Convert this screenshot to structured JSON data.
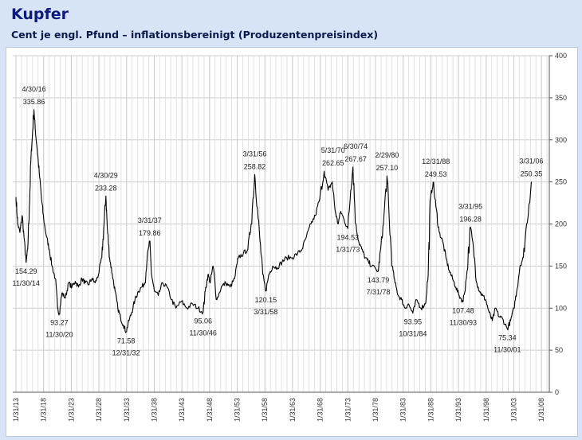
{
  "header": {
    "title": "Kupfer",
    "subtitle": "Cent je engl. Pfund – inflationsbereinigt (Produzentenpreisindex)"
  },
  "colors": {
    "line": "#000000",
    "grid": "#cccccc",
    "background": "#d6e4f5",
    "title": "#0a1a80"
  },
  "chart_data": {
    "type": "line",
    "title": "Kupfer",
    "subtitle": "Cent je engl. Pfund – inflationsbereinigt (Produzentenpreisindex)",
    "xlabel": "",
    "ylabel": "",
    "ylim": [
      0,
      400
    ],
    "xlim": [
      1912.5,
      2009.5
    ],
    "yticks": [
      0,
      50,
      100,
      150,
      200,
      250,
      300,
      350,
      400
    ],
    "xticks": [
      {
        "label": "1/31/13",
        "x": 1913.08
      },
      {
        "label": "1/31/18",
        "x": 1918.08
      },
      {
        "label": "1/31/23",
        "x": 1923.08
      },
      {
        "label": "1/31/28",
        "x": 1928.08
      },
      {
        "label": "1/31/33",
        "x": 1933.08
      },
      {
        "label": "1/31/38",
        "x": 1938.08
      },
      {
        "label": "1/31/43",
        "x": 1943.08
      },
      {
        "label": "1/31/48",
        "x": 1948.08
      },
      {
        "label": "1/31/53",
        "x": 1953.08
      },
      {
        "label": "1/31/58",
        "x": 1958.08
      },
      {
        "label": "1/31/63",
        "x": 1963.08
      },
      {
        "label": "1/31/68",
        "x": 1968.08
      },
      {
        "label": "1/31/73",
        "x": 1973.08
      },
      {
        "label": "1/31/78",
        "x": 1978.08
      },
      {
        "label": "1/31/83",
        "x": 1983.08
      },
      {
        "label": "1/31/88",
        "x": 1988.08
      },
      {
        "label": "1/31/93",
        "x": 1993.08
      },
      {
        "label": "1/31/98",
        "x": 1998.08
      },
      {
        "label": "1/31/03",
        "x": 2003.08
      },
      {
        "label": "1/31/08",
        "x": 2008.08
      }
    ],
    "y_axis_side": "right",
    "grid": true,
    "series": [
      {
        "name": "",
        "x": [
          1913.08,
          1913.4,
          1913.8,
          1914.2,
          1914.6,
          1914.91,
          1915.2,
          1915.5,
          1915.8,
          1916.0,
          1916.33,
          1916.6,
          1916.9,
          1917.3,
          1917.7,
          1918.1,
          1918.6,
          1919.1,
          1919.6,
          1920.2,
          1920.6,
          1920.91,
          1921.4,
          1922.0,
          1922.6,
          1923.2,
          1923.8,
          1924.4,
          1925.0,
          1925.6,
          1926.2,
          1926.8,
          1927.4,
          1928.0,
          1928.6,
          1929.0,
          1929.33,
          1929.6,
          1930.0,
          1930.5,
          1931.0,
          1931.5,
          1932.0,
          1932.5,
          1932.99,
          1933.5,
          1934.0,
          1934.6,
          1935.2,
          1935.8,
          1936.4,
          1936.8,
          1937.25,
          1937.6,
          1938.1,
          1938.8,
          1939.6,
          1940.4,
          1941.2,
          1942.0,
          1943.0,
          1944.0,
          1945.0,
          1946.0,
          1946.91,
          1947.3,
          1947.8,
          1948.2,
          1948.7,
          1949.4,
          1950.2,
          1951.0,
          1951.8,
          1952.6,
          1953.3,
          1954.2,
          1955.0,
          1955.6,
          1956.25,
          1956.7,
          1957.2,
          1957.7,
          1958.25,
          1958.8,
          1959.5,
          1960.3,
          1961.2,
          1962.0,
          1963.0,
          1964.0,
          1964.8,
          1965.6,
          1966.4,
          1967.2,
          1968.0,
          1968.8,
          1969.5,
          1970.25,
          1970.8,
          1971.3,
          1971.8,
          1972.4,
          1973.08,
          1973.6,
          1974.0,
          1974.5,
          1975.0,
          1975.6,
          1976.2,
          1976.8,
          1977.4,
          1978.58,
          1979.0,
          1979.5,
          1980.16,
          1980.6,
          1981.1,
          1981.6,
          1982.2,
          1982.8,
          1983.4,
          1984.0,
          1984.83,
          1985.5,
          1986.3,
          1987.1,
          1987.6,
          1988.0,
          1988.5,
          1989.0,
          1989.6,
          1990.2,
          1990.8,
          1991.4,
          1992.0,
          1992.6,
          1993.2,
          1993.91,
          1994.5,
          1995.25,
          1995.8,
          1996.4,
          1996.9,
          1997.4,
          1998.0,
          1998.6,
          1999.2,
          1999.8,
          2000.4,
          2001.0,
          2001.91,
          2002.5,
          2003.1,
          2003.6,
          2004.2,
          2004.8,
          2005.4,
          2006.25
        ],
        "values": [
          232,
          200,
          190,
          210,
          180,
          154.29,
          170,
          220,
          280,
          300,
          335.86,
          310,
          290,
          260,
          230,
          205,
          185,
          170,
          150,
          135,
          100,
          93.27,
          118,
          112,
          130,
          125,
          132,
          125,
          135,
          130,
          128,
          135,
          130,
          140,
          160,
          200,
          233.28,
          195,
          160,
          140,
          120,
          100,
          88,
          80,
          71.58,
          85,
          95,
          110,
          120,
          125,
          130,
          160,
          179.86,
          140,
          120,
          115,
          130,
          125,
          110,
          100,
          108,
          100,
          105,
          100,
          95.06,
          120,
          140,
          130,
          150,
          110,
          125,
          130,
          125,
          135,
          160,
          165,
          170,
          200,
          258.82,
          220,
          180,
          140,
          120.15,
          140,
          150,
          148,
          155,
          160,
          160,
          165,
          170,
          185,
          200,
          210,
          230,
          262.65,
          240,
          250,
          215,
          200,
          215,
          205,
          194.53,
          240,
          267.67,
          200,
          180,
          170,
          160,
          155,
          150,
          143.79,
          170,
          200,
          257.1,
          200,
          150,
          130,
          115,
          110,
          100,
          105,
          93.95,
          110,
          100,
          105,
          140,
          230,
          249.53,
          220,
          190,
          180,
          160,
          145,
          135,
          125,
          115,
          107.48,
          135,
          196.28,
          170,
          130,
          120,
          115,
          110,
          95,
          85,
          100,
          90,
          88,
          75.34,
          85,
          100,
          120,
          150,
          160,
          200,
          250.35
        ]
      }
    ],
    "annotations": [
      {
        "date": "4/30/16",
        "value": "335.86",
        "x": 1916.33,
        "y": 335.86,
        "pos": "above"
      },
      {
        "date": "11/30/14",
        "value": "154.29",
        "x": 1914.91,
        "y": 154.29,
        "pos": "below"
      },
      {
        "date": "11/30/20",
        "value": "93.27",
        "x": 1920.91,
        "y": 93.27,
        "pos": "below"
      },
      {
        "date": "4/30/29",
        "value": "233.28",
        "x": 1929.33,
        "y": 233.28,
        "pos": "above"
      },
      {
        "date": "12/31/32",
        "value": "71.58",
        "x": 1932.99,
        "y": 71.58,
        "pos": "below"
      },
      {
        "date": "3/31/37",
        "value": "179.86",
        "x": 1937.25,
        "y": 179.86,
        "pos": "above"
      },
      {
        "date": "11/30/46",
        "value": "95.06",
        "x": 1946.91,
        "y": 95.06,
        "pos": "below"
      },
      {
        "date": "3/31/56",
        "value": "258.82",
        "x": 1956.25,
        "y": 258.82,
        "pos": "above"
      },
      {
        "date": "3/31/58",
        "value": "120.15",
        "x": 1958.25,
        "y": 120.15,
        "pos": "below"
      },
      {
        "date": "5/31/70",
        "value": "262.65",
        "x": 1970.41,
        "y": 262.65,
        "pos": "above"
      },
      {
        "date": "6/30/74",
        "value": "267.67",
        "x": 1974.49,
        "y": 267.67,
        "pos": "above"
      },
      {
        "date": "1/31/73",
        "value": "194.53",
        "x": 1973.08,
        "y": 194.53,
        "pos": "below"
      },
      {
        "date": "2/29/80",
        "value": "257.10",
        "x": 1980.16,
        "y": 257.1,
        "pos": "above"
      },
      {
        "date": "7/31/78",
        "value": "143.79",
        "x": 1978.58,
        "y": 143.79,
        "pos": "below"
      },
      {
        "date": "10/31/84",
        "value": "93.95",
        "x": 1984.83,
        "y": 93.95,
        "pos": "below"
      },
      {
        "date": "12/31/88",
        "value": "249.53",
        "x": 1988.99,
        "y": 249.53,
        "pos": "above"
      },
      {
        "date": "3/31/95",
        "value": "196.28",
        "x": 1995.25,
        "y": 196.28,
        "pos": "above"
      },
      {
        "date": "11/30/93",
        "value": "107.48",
        "x": 1993.91,
        "y": 107.48,
        "pos": "below"
      },
      {
        "date": "11/30/01",
        "value": "75.34",
        "x": 2001.91,
        "y": 75.34,
        "pos": "below"
      },
      {
        "date": "3/31/06",
        "value": "250.35",
        "x": 2006.25,
        "y": 250.35,
        "pos": "above"
      }
    ]
  }
}
